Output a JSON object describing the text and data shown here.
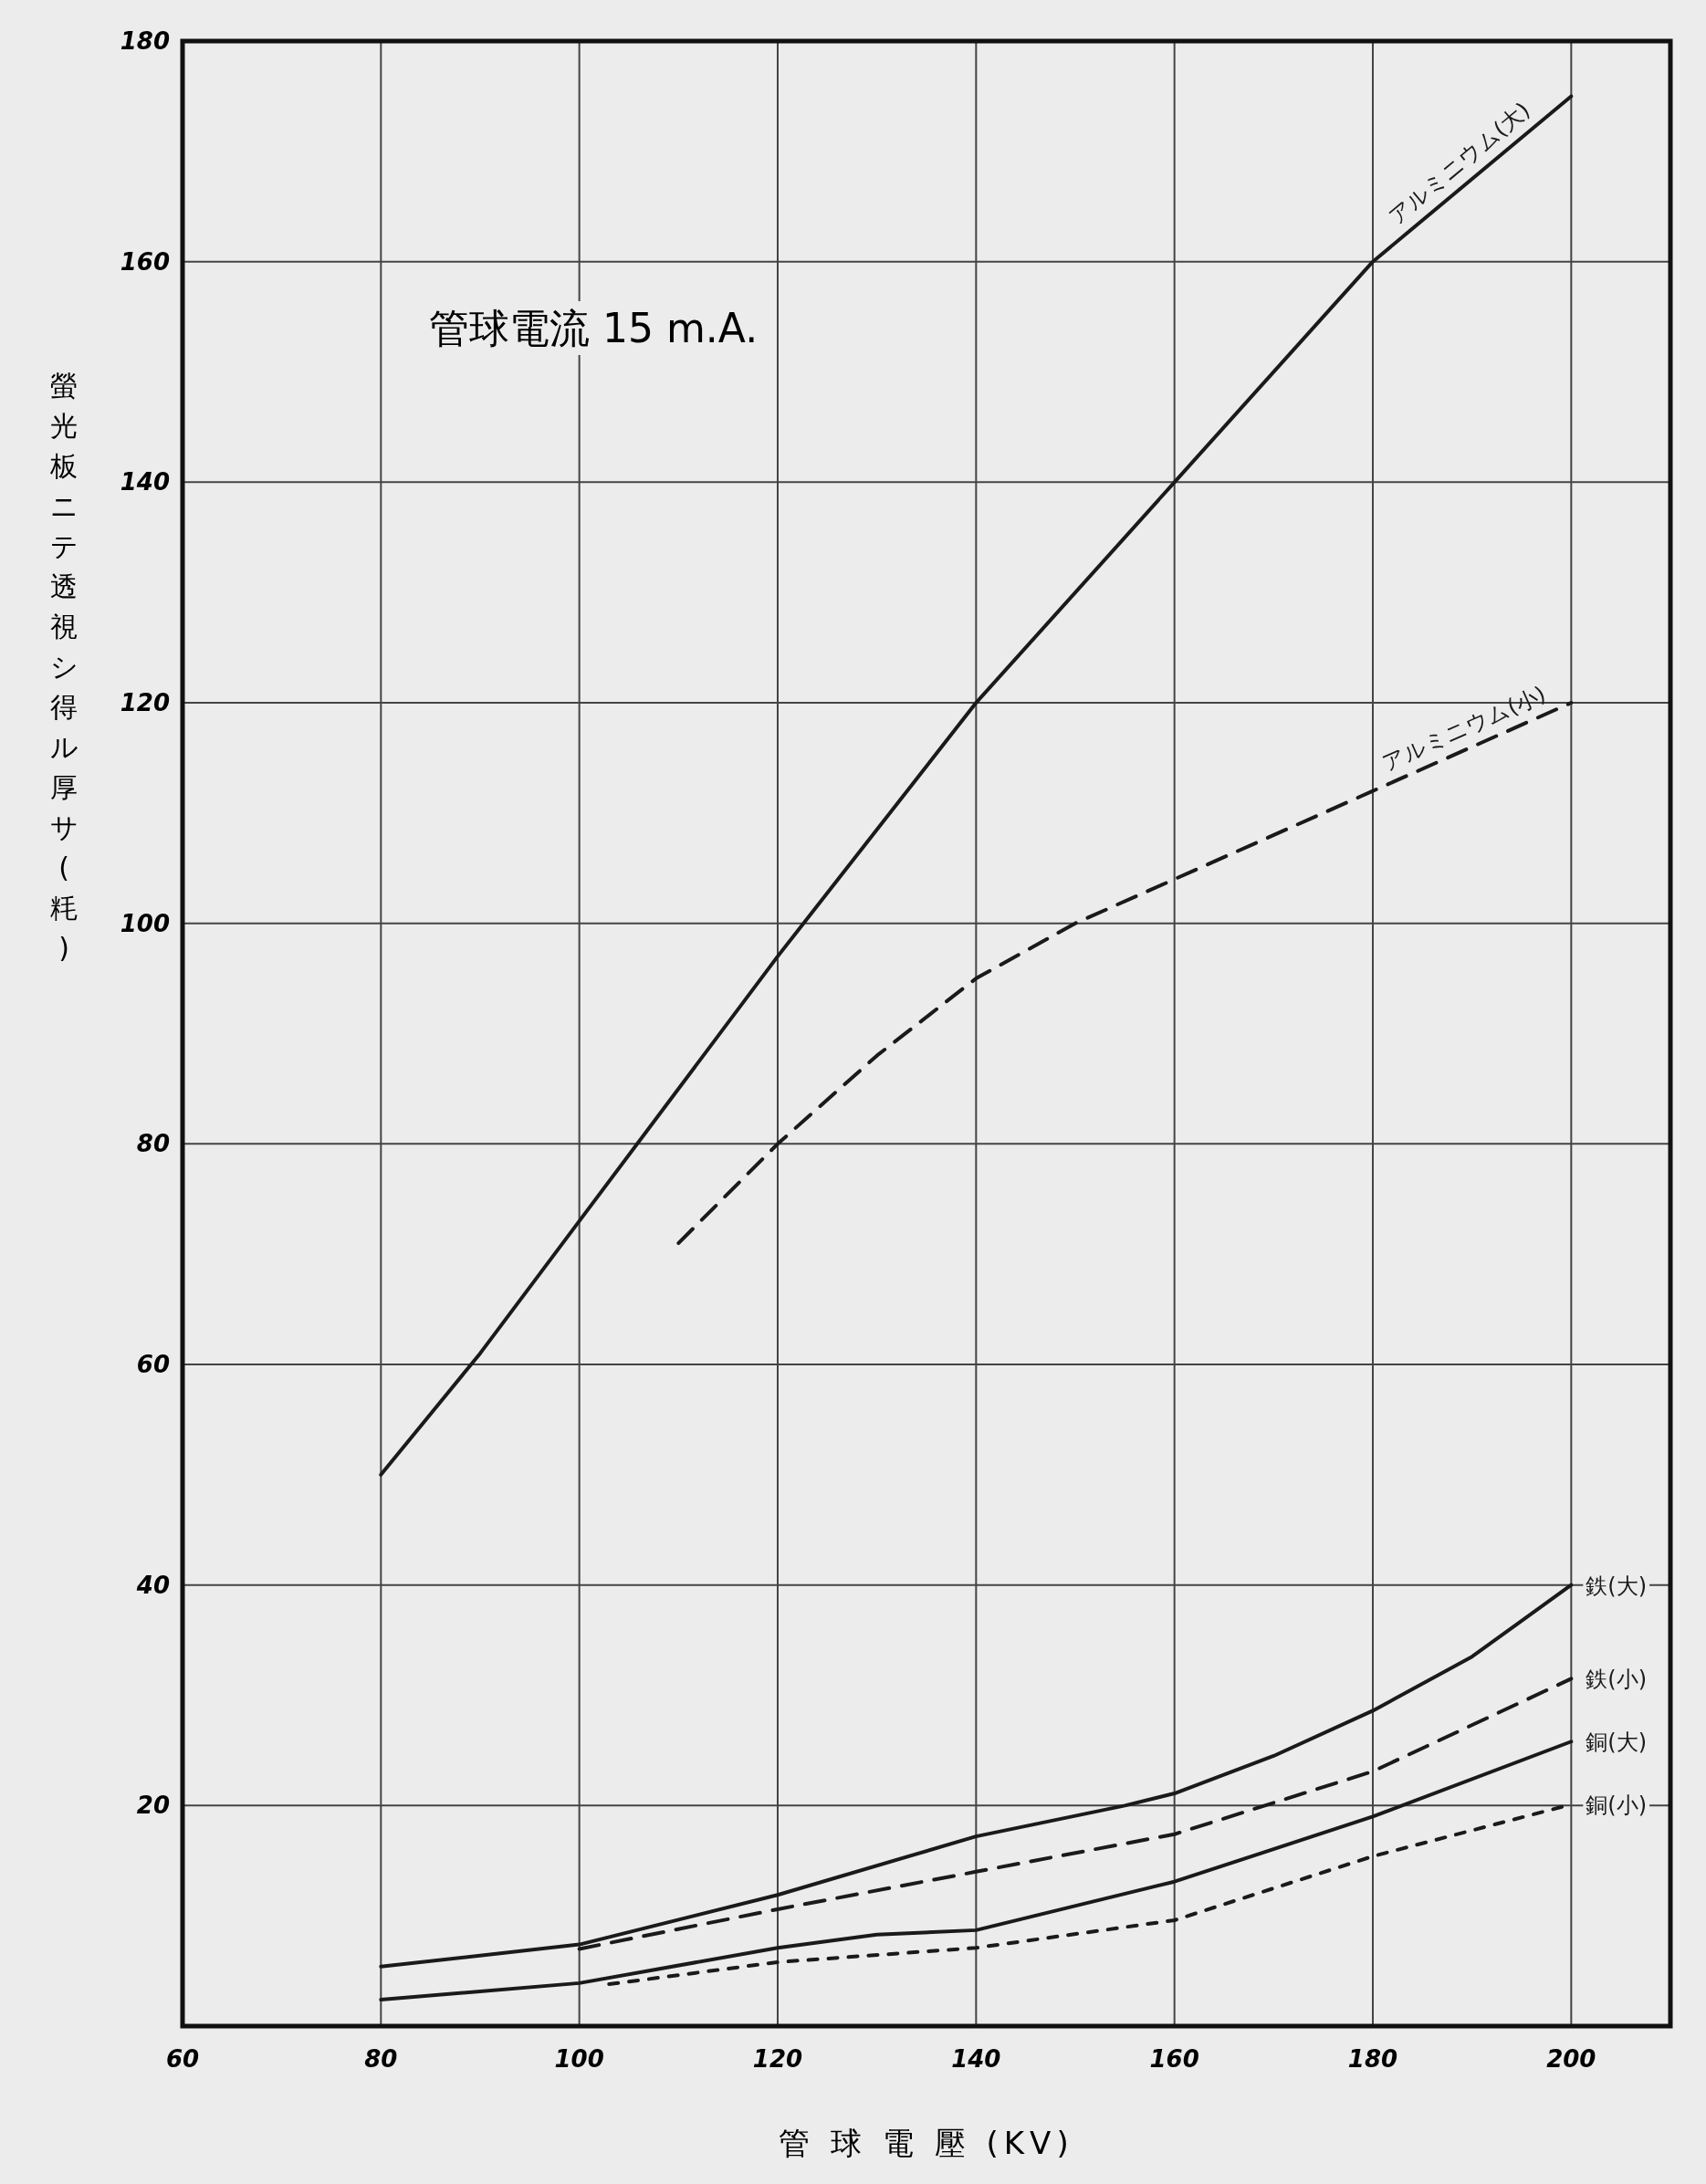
{
  "chart_data": {
    "type": "line",
    "xlabel": "管 球 電 壓 (KV)",
    "ylabel": "螢光板ニテ透視シ得ル厚サ(粍)",
    "annotations": [
      "管球電流 15 m.A."
    ],
    "xlim": [
      60,
      210
    ],
    "ylim": [
      0,
      180
    ],
    "xticks": [
      60,
      80,
      100,
      120,
      140,
      160,
      180,
      200
    ],
    "yticks": [
      20,
      40,
      60,
      80,
      100,
      120,
      140,
      160,
      180
    ],
    "grid": true,
    "legend": false,
    "marker": "none",
    "series": [
      {
        "name": "アルミニウム(大)",
        "color": "#1a1a1a",
        "line_style": "solid",
        "x": [
          80,
          90,
          100,
          120,
          140,
          160,
          180,
          200
        ],
        "values": [
          50,
          61,
          73,
          97,
          120,
          140,
          160,
          175
        ]
      },
      {
        "name": "アルミニウム(小)",
        "color": "#1a1a1a",
        "line_style": "dashed",
        "x": [
          110,
          120,
          130,
          140,
          150,
          160,
          180,
          200
        ],
        "values": [
          71,
          80,
          88,
          95,
          100,
          104,
          112,
          120
        ]
      },
      {
        "name": "鉄(大)",
        "color": "#1a1a1a",
        "line_style": "solid",
        "x": [
          80,
          100,
          120,
          140,
          155,
          160,
          170,
          180,
          190,
          200
        ],
        "values": [
          5.4,
          7.4,
          11.9,
          17.2,
          20,
          21.1,
          24.5,
          28.6,
          33.5,
          40
        ]
      },
      {
        "name": "鉄(小)",
        "color": "#1a1a1a",
        "line_style": "dashed",
        "x": [
          100,
          120,
          140,
          160,
          180,
          200
        ],
        "values": [
          7,
          10.6,
          14,
          17.4,
          23.1,
          31.5
        ]
      },
      {
        "name": "銅(大)",
        "color": "#1a1a1a",
        "line_style": "solid",
        "x": [
          80,
          100,
          120,
          130,
          140,
          160,
          180,
          200
        ],
        "values": [
          2.4,
          3.9,
          7.1,
          8.3,
          8.7,
          13.1,
          19,
          25.8
        ]
      },
      {
        "name": "銅(小)",
        "color": "#1a1a1a",
        "line_style": "dotted",
        "x": [
          103,
          120,
          140,
          160,
          180,
          200
        ],
        "values": [
          3.8,
          5.8,
          7.1,
          9.6,
          15.4,
          20.1
        ]
      }
    ]
  }
}
